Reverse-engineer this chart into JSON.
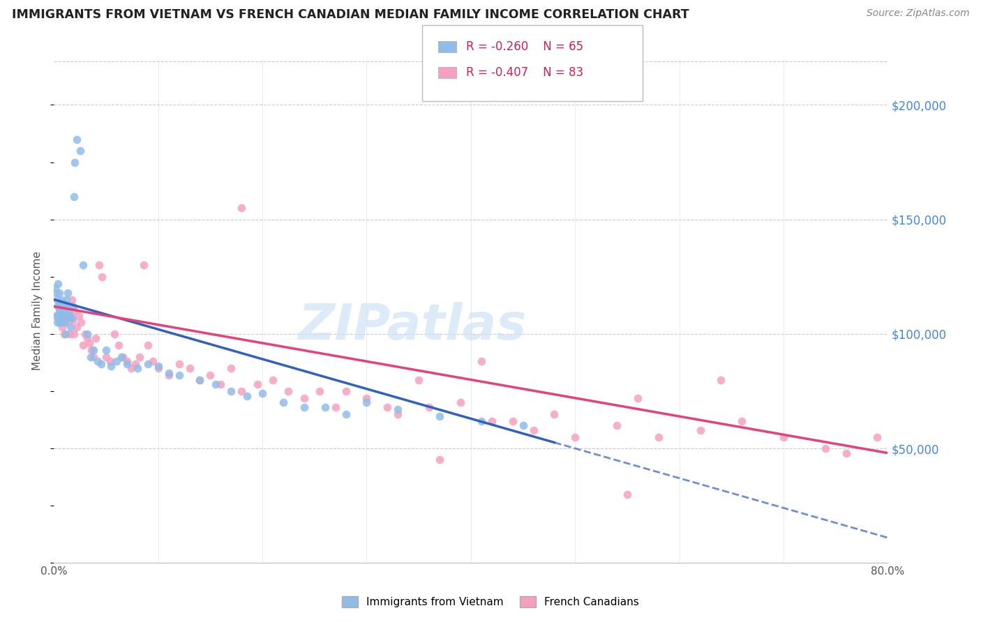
{
  "title": "IMMIGRANTS FROM VIETNAM VS FRENCH CANADIAN MEDIAN FAMILY INCOME CORRELATION CHART",
  "source": "Source: ZipAtlas.com",
  "ylabel": "Median Family Income",
  "legend_blue_r": "-0.260",
  "legend_blue_n": "65",
  "legend_pink_r": "-0.407",
  "legend_pink_n": "83",
  "blue_color": "#90bce8",
  "pink_color": "#f5a0c0",
  "blue_line_color": "#3060c0",
  "pink_line_color": "#e8407a",
  "watermark_text": "ZIPatlas",
  "watermark_color": "#cce0f5",
  "ytick_labels": [
    "$50,000",
    "$100,000",
    "$150,000",
    "$200,000"
  ],
  "ytick_values": [
    50000,
    100000,
    150000,
    200000
  ],
  "ymin": 0,
  "ymax": 220000,
  "xmin": 0.0,
  "xmax": 0.8,
  "blue_intercept": 115000,
  "blue_slope": -130000,
  "pink_intercept": 112000,
  "pink_slope": -80000,
  "blue_x_max_line": 0.48,
  "blue_x": [
    0.001,
    0.002,
    0.002,
    0.003,
    0.003,
    0.004,
    0.004,
    0.005,
    0.005,
    0.005,
    0.006,
    0.006,
    0.007,
    0.007,
    0.008,
    0.008,
    0.009,
    0.009,
    0.01,
    0.01,
    0.01,
    0.011,
    0.011,
    0.012,
    0.012,
    0.013,
    0.014,
    0.015,
    0.016,
    0.017,
    0.018,
    0.019,
    0.02,
    0.022,
    0.025,
    0.028,
    0.032,
    0.035,
    0.038,
    0.042,
    0.045,
    0.05,
    0.055,
    0.06,
    0.065,
    0.07,
    0.08,
    0.09,
    0.1,
    0.11,
    0.12,
    0.14,
    0.155,
    0.17,
    0.185,
    0.2,
    0.22,
    0.24,
    0.26,
    0.28,
    0.3,
    0.33,
    0.37,
    0.41,
    0.45
  ],
  "blue_y": [
    120000,
    108000,
    118000,
    115000,
    105000,
    112000,
    122000,
    110000,
    118000,
    105000,
    112000,
    108000,
    115000,
    105000,
    112000,
    108000,
    107000,
    113000,
    110000,
    105000,
    112000,
    107000,
    100000,
    108000,
    115000,
    118000,
    110000,
    108000,
    103000,
    107000,
    112000,
    160000,
    175000,
    185000,
    180000,
    130000,
    100000,
    90000,
    93000,
    88000,
    87000,
    93000,
    86000,
    88000,
    90000,
    87000,
    85000,
    87000,
    86000,
    83000,
    82000,
    80000,
    78000,
    75000,
    73000,
    74000,
    70000,
    68000,
    68000,
    65000,
    70000,
    67000,
    64000,
    62000,
    60000
  ],
  "pink_x": [
    0.003,
    0.004,
    0.005,
    0.006,
    0.007,
    0.008,
    0.009,
    0.01,
    0.011,
    0.012,
    0.013,
    0.014,
    0.015,
    0.016,
    0.017,
    0.018,
    0.019,
    0.02,
    0.022,
    0.024,
    0.026,
    0.028,
    0.03,
    0.032,
    0.034,
    0.036,
    0.038,
    0.04,
    0.043,
    0.046,
    0.05,
    0.054,
    0.058,
    0.062,
    0.066,
    0.07,
    0.074,
    0.078,
    0.082,
    0.086,
    0.09,
    0.095,
    0.1,
    0.11,
    0.12,
    0.13,
    0.14,
    0.15,
    0.16,
    0.17,
    0.18,
    0.195,
    0.21,
    0.225,
    0.24,
    0.255,
    0.27,
    0.3,
    0.33,
    0.36,
    0.39,
    0.42,
    0.46,
    0.5,
    0.54,
    0.58,
    0.62,
    0.66,
    0.7,
    0.74,
    0.76,
    0.79,
    0.35,
    0.48,
    0.56,
    0.64,
    0.28,
    0.41,
    0.32,
    0.44,
    0.18,
    0.37,
    0.55
  ],
  "pink_y": [
    108000,
    112000,
    105000,
    110000,
    108000,
    103000,
    107000,
    100000,
    108000,
    105000,
    108000,
    112000,
    100000,
    107000,
    115000,
    106000,
    100000,
    110000,
    103000,
    108000,
    105000,
    95000,
    100000,
    98000,
    96000,
    93000,
    90000,
    98000,
    130000,
    125000,
    90000,
    88000,
    100000,
    95000,
    90000,
    88000,
    85000,
    87000,
    90000,
    130000,
    95000,
    88000,
    85000,
    82000,
    87000,
    85000,
    80000,
    82000,
    78000,
    85000,
    75000,
    78000,
    80000,
    75000,
    72000,
    75000,
    68000,
    72000,
    65000,
    68000,
    70000,
    62000,
    58000,
    55000,
    60000,
    55000,
    58000,
    62000,
    55000,
    50000,
    48000,
    55000,
    80000,
    65000,
    72000,
    80000,
    75000,
    88000,
    68000,
    62000,
    155000,
    45000,
    30000
  ]
}
